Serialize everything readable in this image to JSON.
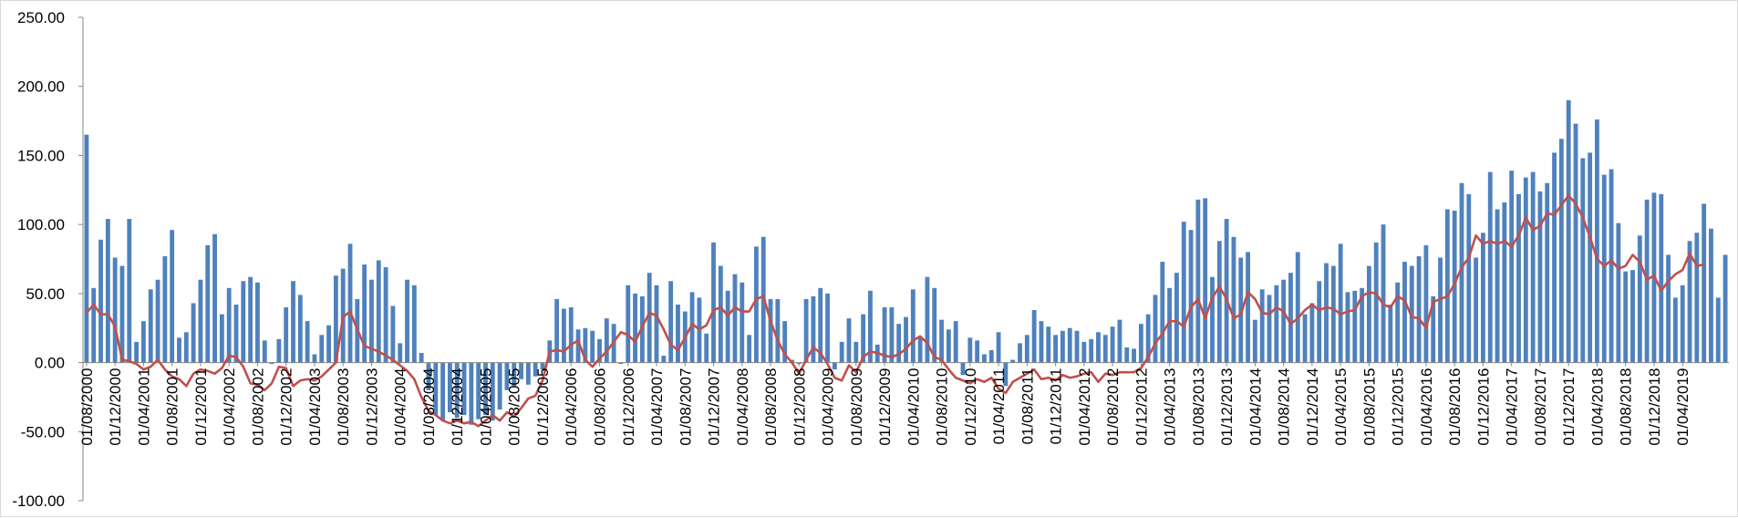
{
  "chart_data": {
    "type": "bar",
    "title": "",
    "xlabel": "",
    "ylabel": "",
    "ylim": [
      -100,
      250
    ],
    "y_ticks": [
      "250.00",
      "200.00",
      "150.00",
      "100.00",
      "50.00",
      "0.00",
      "-50.00",
      "-100.00"
    ],
    "y_tick_values": [
      250,
      200,
      150,
      100,
      50,
      0,
      -50,
      -100
    ],
    "x_tick_labels": [
      "01/08/2000",
      "01/12/2000",
      "01/04/2001",
      "01/08/2001",
      "01/12/2001",
      "01/04/2002",
      "01/08/2002",
      "01/12/2002",
      "01/04/2003",
      "01/08/2003",
      "01/12/2003",
      "01/04/2004",
      "01/08/2004",
      "01/12/2004",
      "01/04/2005",
      "01/08/2005",
      "01/12/2005",
      "01/04/2006",
      "01/08/2006",
      "01/12/2006",
      "01/04/2007",
      "01/08/2007",
      "01/12/2007",
      "01/04/2008",
      "01/08/2008",
      "01/12/2008",
      "01/04/2009",
      "01/08/2009",
      "01/12/2009",
      "01/04/2010",
      "01/08/2010",
      "01/12/2010",
      "01/04/2011",
      "01/08/2011",
      "01/12/2011",
      "01/04/2012",
      "01/08/2012",
      "01/12/2012",
      "01/04/2013",
      "01/08/2013",
      "01/12/2013",
      "01/04/2014",
      "01/08/2014",
      "01/12/2014",
      "01/04/2015",
      "01/08/2015",
      "01/12/2015",
      "01/04/2016",
      "01/08/2016",
      "01/12/2016",
      "01/04/2017",
      "01/08/2017",
      "01/12/2017",
      "01/04/2018",
      "01/08/2018",
      "01/12/2018",
      "01/04/2019"
    ],
    "x_start": "2000-08",
    "x_end": "2019-07",
    "grid": false,
    "legend": "none",
    "series": [
      {
        "type": "bar",
        "color": "#4f81bd",
        "values": [
          165,
          54,
          89,
          104,
          76,
          70,
          104,
          15,
          30,
          53,
          60,
          77,
          96,
          18,
          22,
          43,
          60,
          85,
          93,
          35,
          54,
          42,
          59,
          62,
          58,
          16,
          -1,
          17,
          40,
          59,
          49,
          30,
          6,
          20,
          27,
          63,
          68,
          86,
          46,
          71,
          60,
          74,
          69,
          41,
          14,
          60,
          56,
          7,
          -20,
          -38,
          -42,
          -36,
          -40,
          -38,
          -45,
          -41,
          -38,
          -42,
          -34,
          -20,
          -17,
          -12,
          -16,
          -10,
          -5,
          16,
          46,
          39,
          40,
          24,
          25,
          23,
          17,
          32,
          28,
          -1,
          56,
          50,
          48,
          65,
          56,
          5,
          59,
          42,
          37,
          51,
          47,
          21,
          87,
          70,
          52,
          64,
          58,
          20,
          84,
          91,
          46,
          46,
          30,
          2,
          -1,
          46,
          48,
          54,
          50,
          -5,
          15,
          32,
          15,
          35,
          52,
          13,
          40,
          40,
          28,
          33,
          53,
          18,
          62,
          54,
          31,
          24,
          30,
          -9,
          18,
          16,
          6,
          9,
          22,
          -17,
          2,
          14,
          20,
          38,
          30,
          26,
          20,
          23,
          25,
          23,
          15,
          17,
          22,
          20,
          26,
          31,
          11,
          10,
          28,
          35,
          49,
          73,
          54,
          65,
          102,
          96,
          118,
          119,
          62,
          88,
          104,
          91,
          76,
          80,
          31,
          53,
          49,
          56,
          60,
          65,
          80,
          35,
          43,
          59,
          72,
          70,
          86,
          51,
          52,
          54,
          70,
          87,
          100,
          42,
          58,
          73,
          70,
          77,
          85,
          48,
          76,
          111,
          110,
          130,
          122,
          76,
          94,
          138,
          111,
          116,
          139,
          122,
          134,
          138,
          124,
          130,
          152,
          162,
          190,
          173,
          148,
          152,
          176,
          136,
          140,
          101,
          66,
          67,
          92,
          118,
          123,
          122,
          78,
          47,
          56,
          88,
          94,
          115,
          97,
          47,
          78
        ]
      },
      {
        "type": "line",
        "color": "#c0504d",
        "values": [
          36,
          42,
          35,
          35,
          26,
          2,
          1,
          -1,
          -5,
          -3,
          2,
          -5,
          -10,
          -12,
          -17,
          -8,
          -5,
          -6,
          -8,
          -4,
          5,
          4,
          -3,
          -15,
          -16,
          -20,
          -15,
          -3,
          -4,
          -17,
          -13,
          -12,
          -13,
          -10,
          -5,
          0,
          33,
          37,
          24,
          12,
          10,
          8,
          5,
          2,
          -2,
          -6,
          -12,
          -25,
          -35,
          -38,
          -42,
          -44,
          -42,
          -44,
          -43,
          -46,
          -42,
          -38,
          -42,
          -36,
          -39,
          -33,
          -26,
          -24,
          -13,
          8,
          9,
          8,
          13,
          16,
          2,
          -3,
          3,
          8,
          15,
          22,
          20,
          15,
          26,
          36,
          34,
          24,
          13,
          9,
          18,
          28,
          24,
          27,
          38,
          40,
          34,
          40,
          37,
          37,
          46,
          48,
          30,
          16,
          6,
          0,
          -8,
          2,
          11,
          7,
          -1,
          -11,
          -13,
          -2,
          -7,
          4,
          8,
          7,
          5,
          4,
          6,
          10,
          16,
          19,
          14,
          4,
          2,
          -5,
          -11,
          -13,
          -15,
          -12,
          -14,
          -11,
          -19,
          -22,
          -14,
          -11,
          -8,
          -5,
          -12,
          -11,
          -13,
          -9,
          -11,
          -10,
          -8,
          -7,
          -14,
          -8,
          -9,
          -7,
          -7,
          -7,
          -4,
          4,
          14,
          21,
          30,
          30,
          26,
          40,
          46,
          32,
          47,
          55,
          46,
          32,
          35,
          51,
          46,
          36,
          35,
          40,
          37,
          28,
          32,
          38,
          42,
          38,
          40,
          39,
          35,
          37,
          38,
          48,
          51,
          50,
          42,
          40,
          48,
          45,
          33,
          32,
          25,
          44,
          46,
          48,
          57,
          69,
          76,
          92,
          86,
          88,
          86,
          88,
          84,
          92,
          105,
          96,
          99,
          108,
          107,
          114,
          121,
          115,
          105,
          91,
          75,
          70,
          74,
          68,
          70,
          78,
          73,
          60,
          63,
          52,
          59,
          64,
          67,
          79,
          70,
          71
        ]
      }
    ]
  }
}
